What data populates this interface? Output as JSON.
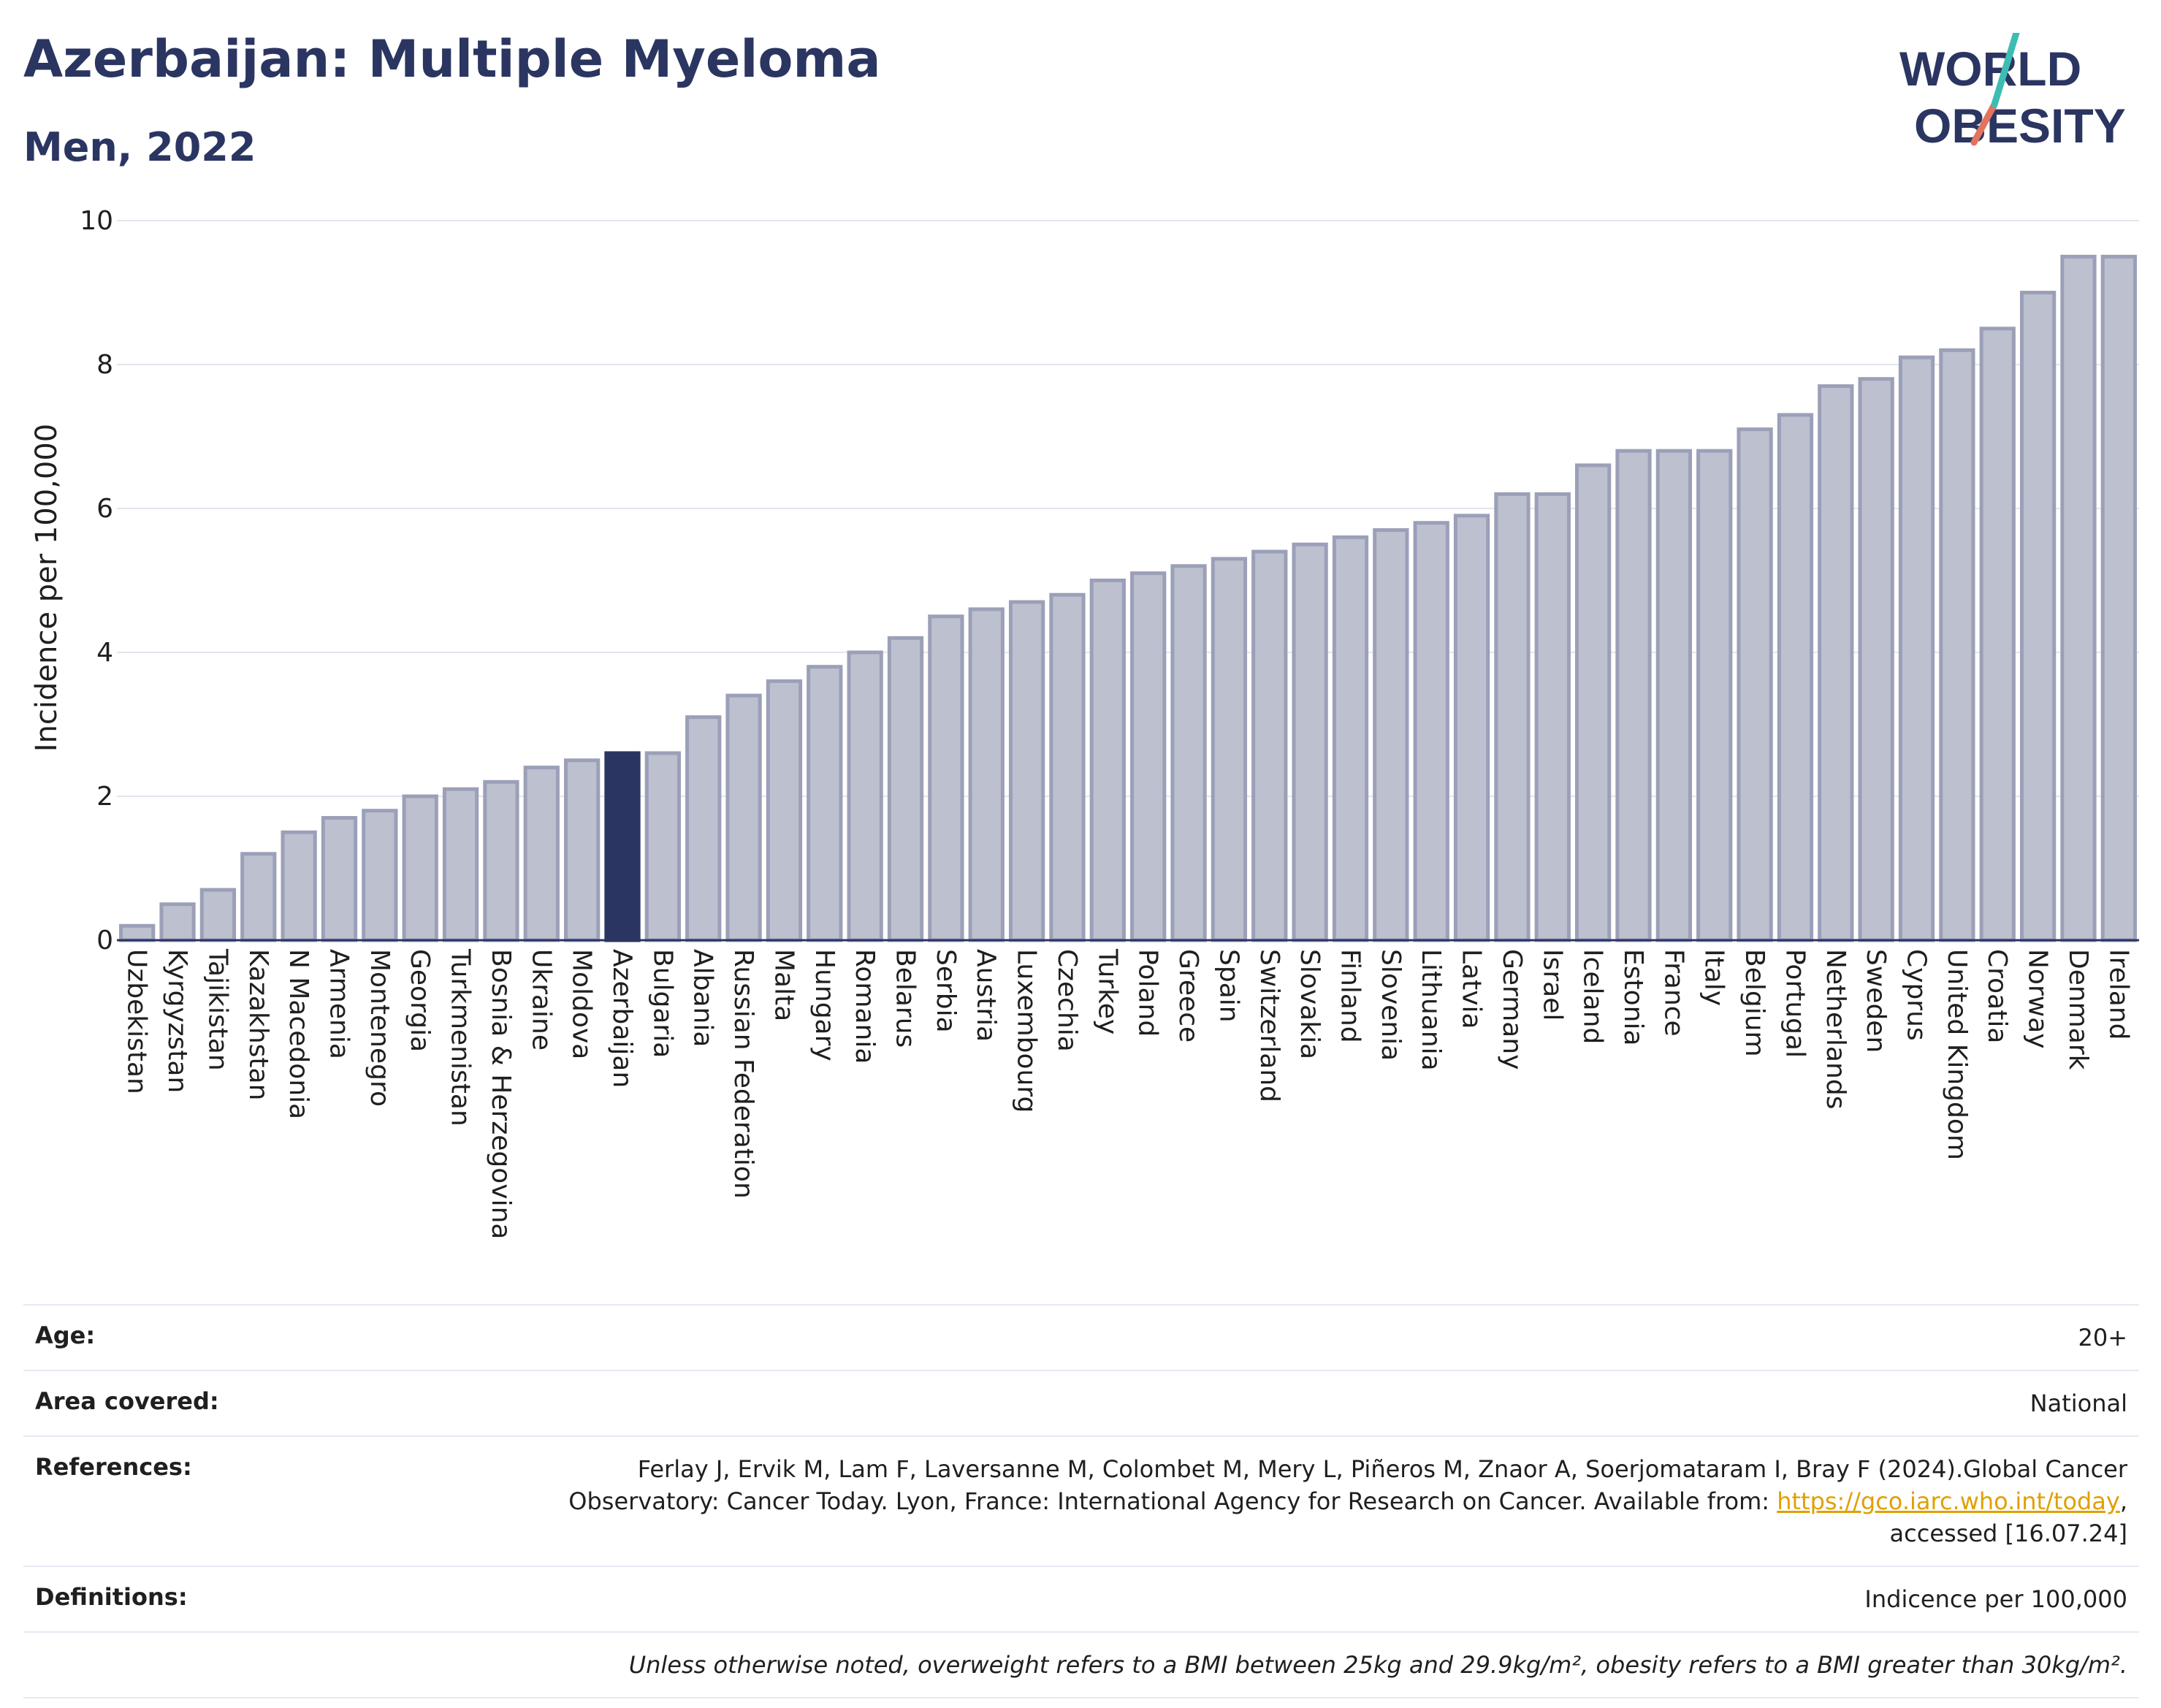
{
  "header": {
    "title": "Azerbaijan: Multiple Myeloma",
    "subtitle": "Men, 2022",
    "logo_line1": "WORLD",
    "logo_line2": "OBESITY"
  },
  "colors": {
    "bar_fill": "#bcc0cf",
    "bar_stroke": "#9ba0b8",
    "highlight": "#2b3561",
    "accent_teal": "#3cbdb2",
    "accent_red": "#e2735f"
  },
  "chart_data": {
    "type": "bar",
    "ylabel": "Incidence per 100,000",
    "ylim": [
      0,
      10
    ],
    "yticks": [
      0,
      2,
      4,
      6,
      8,
      10
    ],
    "grid": true,
    "highlight": "Azerbaijan",
    "categories": [
      "Uzbekistan",
      "Kyrgyzstan",
      "Tajikistan",
      "Kazakhstan",
      "N Macedonia",
      "Armenia",
      "Montenegro",
      "Georgia",
      "Turkmenistan",
      "Bosnia & Herzegovina",
      "Ukraine",
      "Moldova",
      "Azerbaijan",
      "Bulgaria",
      "Albania",
      "Russian Federation",
      "Malta",
      "Hungary",
      "Romania",
      "Belarus",
      "Serbia",
      "Austria",
      "Luxembourg",
      "Czechia",
      "Turkey",
      "Poland",
      "Greece",
      "Spain",
      "Switzerland",
      "Slovakia",
      "Finland",
      "Slovenia",
      "Lithuania",
      "Latvia",
      "Germany",
      "Israel",
      "Iceland",
      "Estonia",
      "France",
      "Italy",
      "Belgium",
      "Portugal",
      "Netherlands",
      "Sweden",
      "Cyprus",
      "United Kingdom",
      "Croatia",
      "Norway",
      "Denmark",
      "Ireland"
    ],
    "values": [
      0.2,
      0.5,
      0.7,
      1.2,
      1.5,
      1.7,
      1.8,
      2.0,
      2.1,
      2.2,
      2.4,
      2.5,
      2.6,
      2.6,
      3.1,
      3.4,
      3.6,
      3.8,
      4.0,
      4.2,
      4.5,
      4.6,
      4.7,
      4.8,
      5.0,
      5.1,
      5.2,
      5.3,
      5.4,
      5.5,
      5.6,
      5.7,
      5.8,
      5.9,
      6.2,
      6.2,
      6.6,
      6.8,
      6.8,
      6.8,
      7.1,
      7.3,
      7.7,
      7.8,
      8.1,
      8.2,
      8.5,
      9.0,
      9.5,
      9.5
    ]
  },
  "meta": {
    "age_label": "Age:",
    "age_value": "20+",
    "area_label": "Area covered:",
    "area_value": "National",
    "references_label": "References:",
    "references_text": "Ferlay J, Ervik M, Lam F, Laversanne M, Colombet M, Mery L, Piñeros M, Znaor A, Soerjomataram I, Bray F (2024).Global Cancer Observatory: Cancer Today. Lyon, France: International Agency for Research on Cancer. Available from: ",
    "references_link": "https://gco.iarc.who.int/today",
    "references_tail": ", accessed [16.07.24]",
    "definitions_label": "Definitions:",
    "definitions_value": "Indicence per 100,000",
    "note": "Unless otherwise noted, overweight refers to a BMI between 25kg and 29.9kg/m², obesity refers to a BMI greater than 30kg/m²."
  }
}
